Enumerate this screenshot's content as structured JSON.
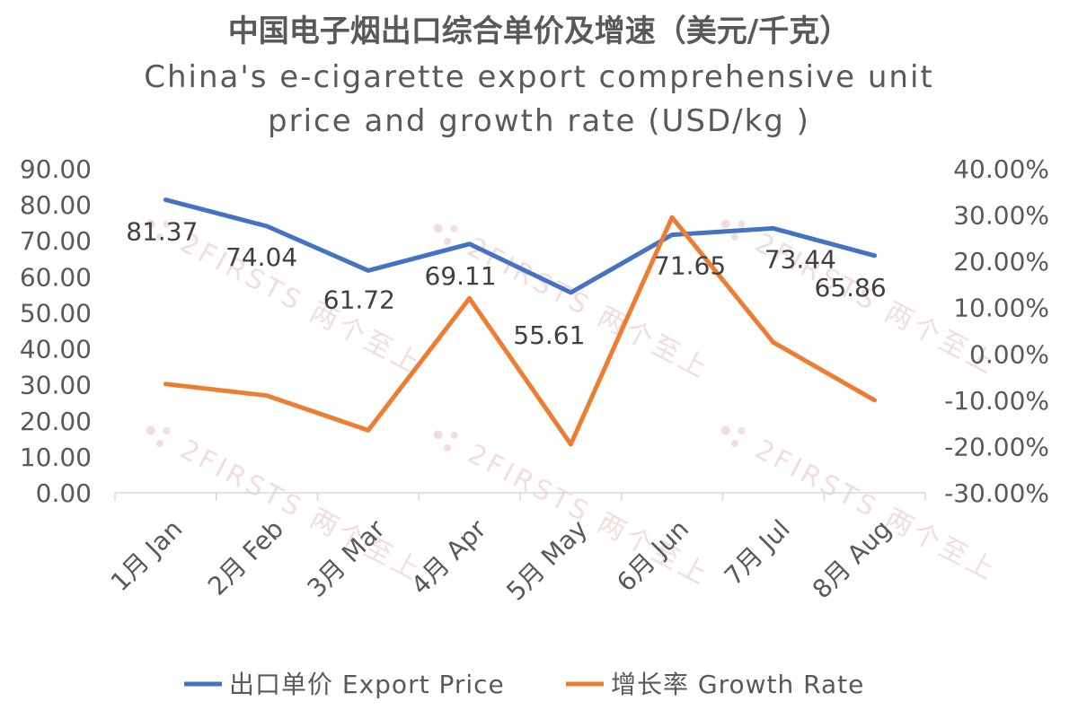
{
  "chart_data": {
    "type": "line",
    "title_cn": "中国电子烟出口综合单价及增速（美元/千克）",
    "title_en_line1": "China's e-cigarette export comprehensive unit",
    "title_en_line2": "price and growth rate (USD/kg )",
    "categories": [
      "1月 Jan",
      "2月 Feb",
      "3月 Mar",
      "4月 Apr",
      "5月 May",
      "6月 Jun",
      "7月 Jul",
      "8月 Aug"
    ],
    "series": [
      {
        "name": "出口单价 Export Price",
        "axis": "left",
        "color": "#4472c4",
        "values": [
          81.37,
          74.04,
          61.72,
          69.11,
          55.61,
          71.65,
          73.44,
          65.86
        ],
        "labels": [
          "81.37",
          "74.04",
          "61.72",
          "69.11",
          "55.61",
          "71.65",
          "73.44",
          "65.86"
        ]
      },
      {
        "name": "增长率 Growth Rate",
        "axis": "right",
        "color": "#ed7d31",
        "values": [
          -0.065,
          -0.09,
          -0.165,
          0.12,
          -0.195,
          0.295,
          0.025,
          -0.1
        ]
      }
    ],
    "y_left": {
      "min": 0,
      "max": 90,
      "step": 10,
      "tick_labels": [
        "0.00",
        "10.00",
        "20.00",
        "30.00",
        "40.00",
        "50.00",
        "60.00",
        "70.00",
        "80.00",
        "90.00"
      ]
    },
    "y_right": {
      "min": -0.3,
      "max": 0.4,
      "step": 0.1,
      "tick_labels": [
        "-30.00%",
        "-20.00%",
        "-10.00%",
        "0.00%",
        "10.00%",
        "20.00%",
        "30.00%",
        "40.00%"
      ]
    },
    "legend_position": "bottom",
    "grid": false
  },
  "watermark": {
    "text": "2FIRSTS 两个至上",
    "color": "#e6c2c2"
  }
}
